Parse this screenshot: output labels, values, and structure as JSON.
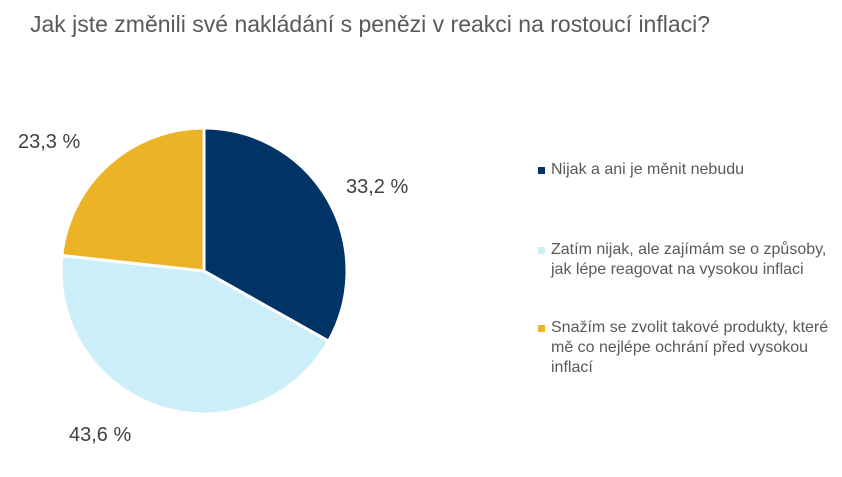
{
  "chart_data": {
    "type": "pie",
    "title": "Jak jste změnili své nakládání s penězi v reakci na rostoucí inflaci?",
    "legend_position": "right",
    "slices": [
      {
        "name": "Nijak a ani je měnit nebudu",
        "value": 33.2,
        "label": "33,2 %",
        "color": "#003366"
      },
      {
        "name": "Zatím nijak, ale zajímám se o způsoby, jak lépe reagovat na vysokou inflaci",
        "value": 43.6,
        "label": "43,6 %",
        "color": "#CCEEF8"
      },
      {
        "name": "Snažím se zvolit takové produkty, které mě co nejlépe ochrání před vysokou inflací",
        "value": 23.3,
        "label": "23,3 %",
        "color": "#EDB327"
      }
    ]
  }
}
